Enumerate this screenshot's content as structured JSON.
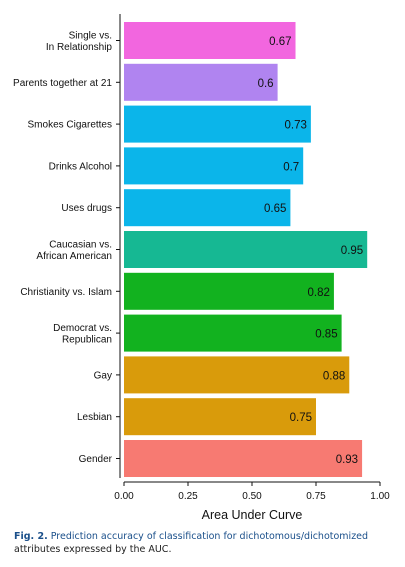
{
  "chart_data": {
    "type": "bar",
    "orientation": "horizontal",
    "categories": [
      [
        "Single vs.",
        "In Relationship"
      ],
      [
        "Parents together at 21"
      ],
      [
        "Smokes Cigarettes"
      ],
      [
        "Drinks Alcohol"
      ],
      [
        "Uses drugs"
      ],
      [
        "Caucasian vs.",
        "African American"
      ],
      [
        "Christianity vs. Islam"
      ],
      [
        "Democrat vs.",
        "Republican"
      ],
      [
        "Gay"
      ],
      [
        "Lesbian"
      ],
      [
        "Gender"
      ]
    ],
    "values": [
      0.67,
      0.6,
      0.73,
      0.7,
      0.65,
      0.95,
      0.82,
      0.85,
      0.88,
      0.75,
      0.93
    ],
    "value_labels": [
      "0.67",
      "0.6",
      "0.73",
      "0.7",
      "0.65",
      "0.95",
      "0.82",
      "0.85",
      "0.88",
      "0.75",
      "0.93"
    ],
    "colors": [
      "#f266df",
      "#b084f0",
      "#0bb5ea",
      "#0bb5ea",
      "#0bb5ea",
      "#16b893",
      "#12b21f",
      "#12b21f",
      "#d99b0b",
      "#d99b0b",
      "#f77a72"
    ],
    "xlabel": "Area Under Curve",
    "ylabel": "",
    "xlim": [
      0,
      1
    ],
    "xticks": [
      0,
      0.25,
      0.5,
      0.75,
      1
    ],
    "xtick_labels": [
      "0.00",
      "0.25",
      "0.50",
      "0.75",
      "1.00"
    ],
    "grid": false,
    "legend": "none"
  },
  "caption": {
    "fig_label": "Fig. 2.",
    "lead": "Prediction accuracy of classification for dichotomous/dichotomized",
    "rest": "attributes expressed by the AUC."
  }
}
